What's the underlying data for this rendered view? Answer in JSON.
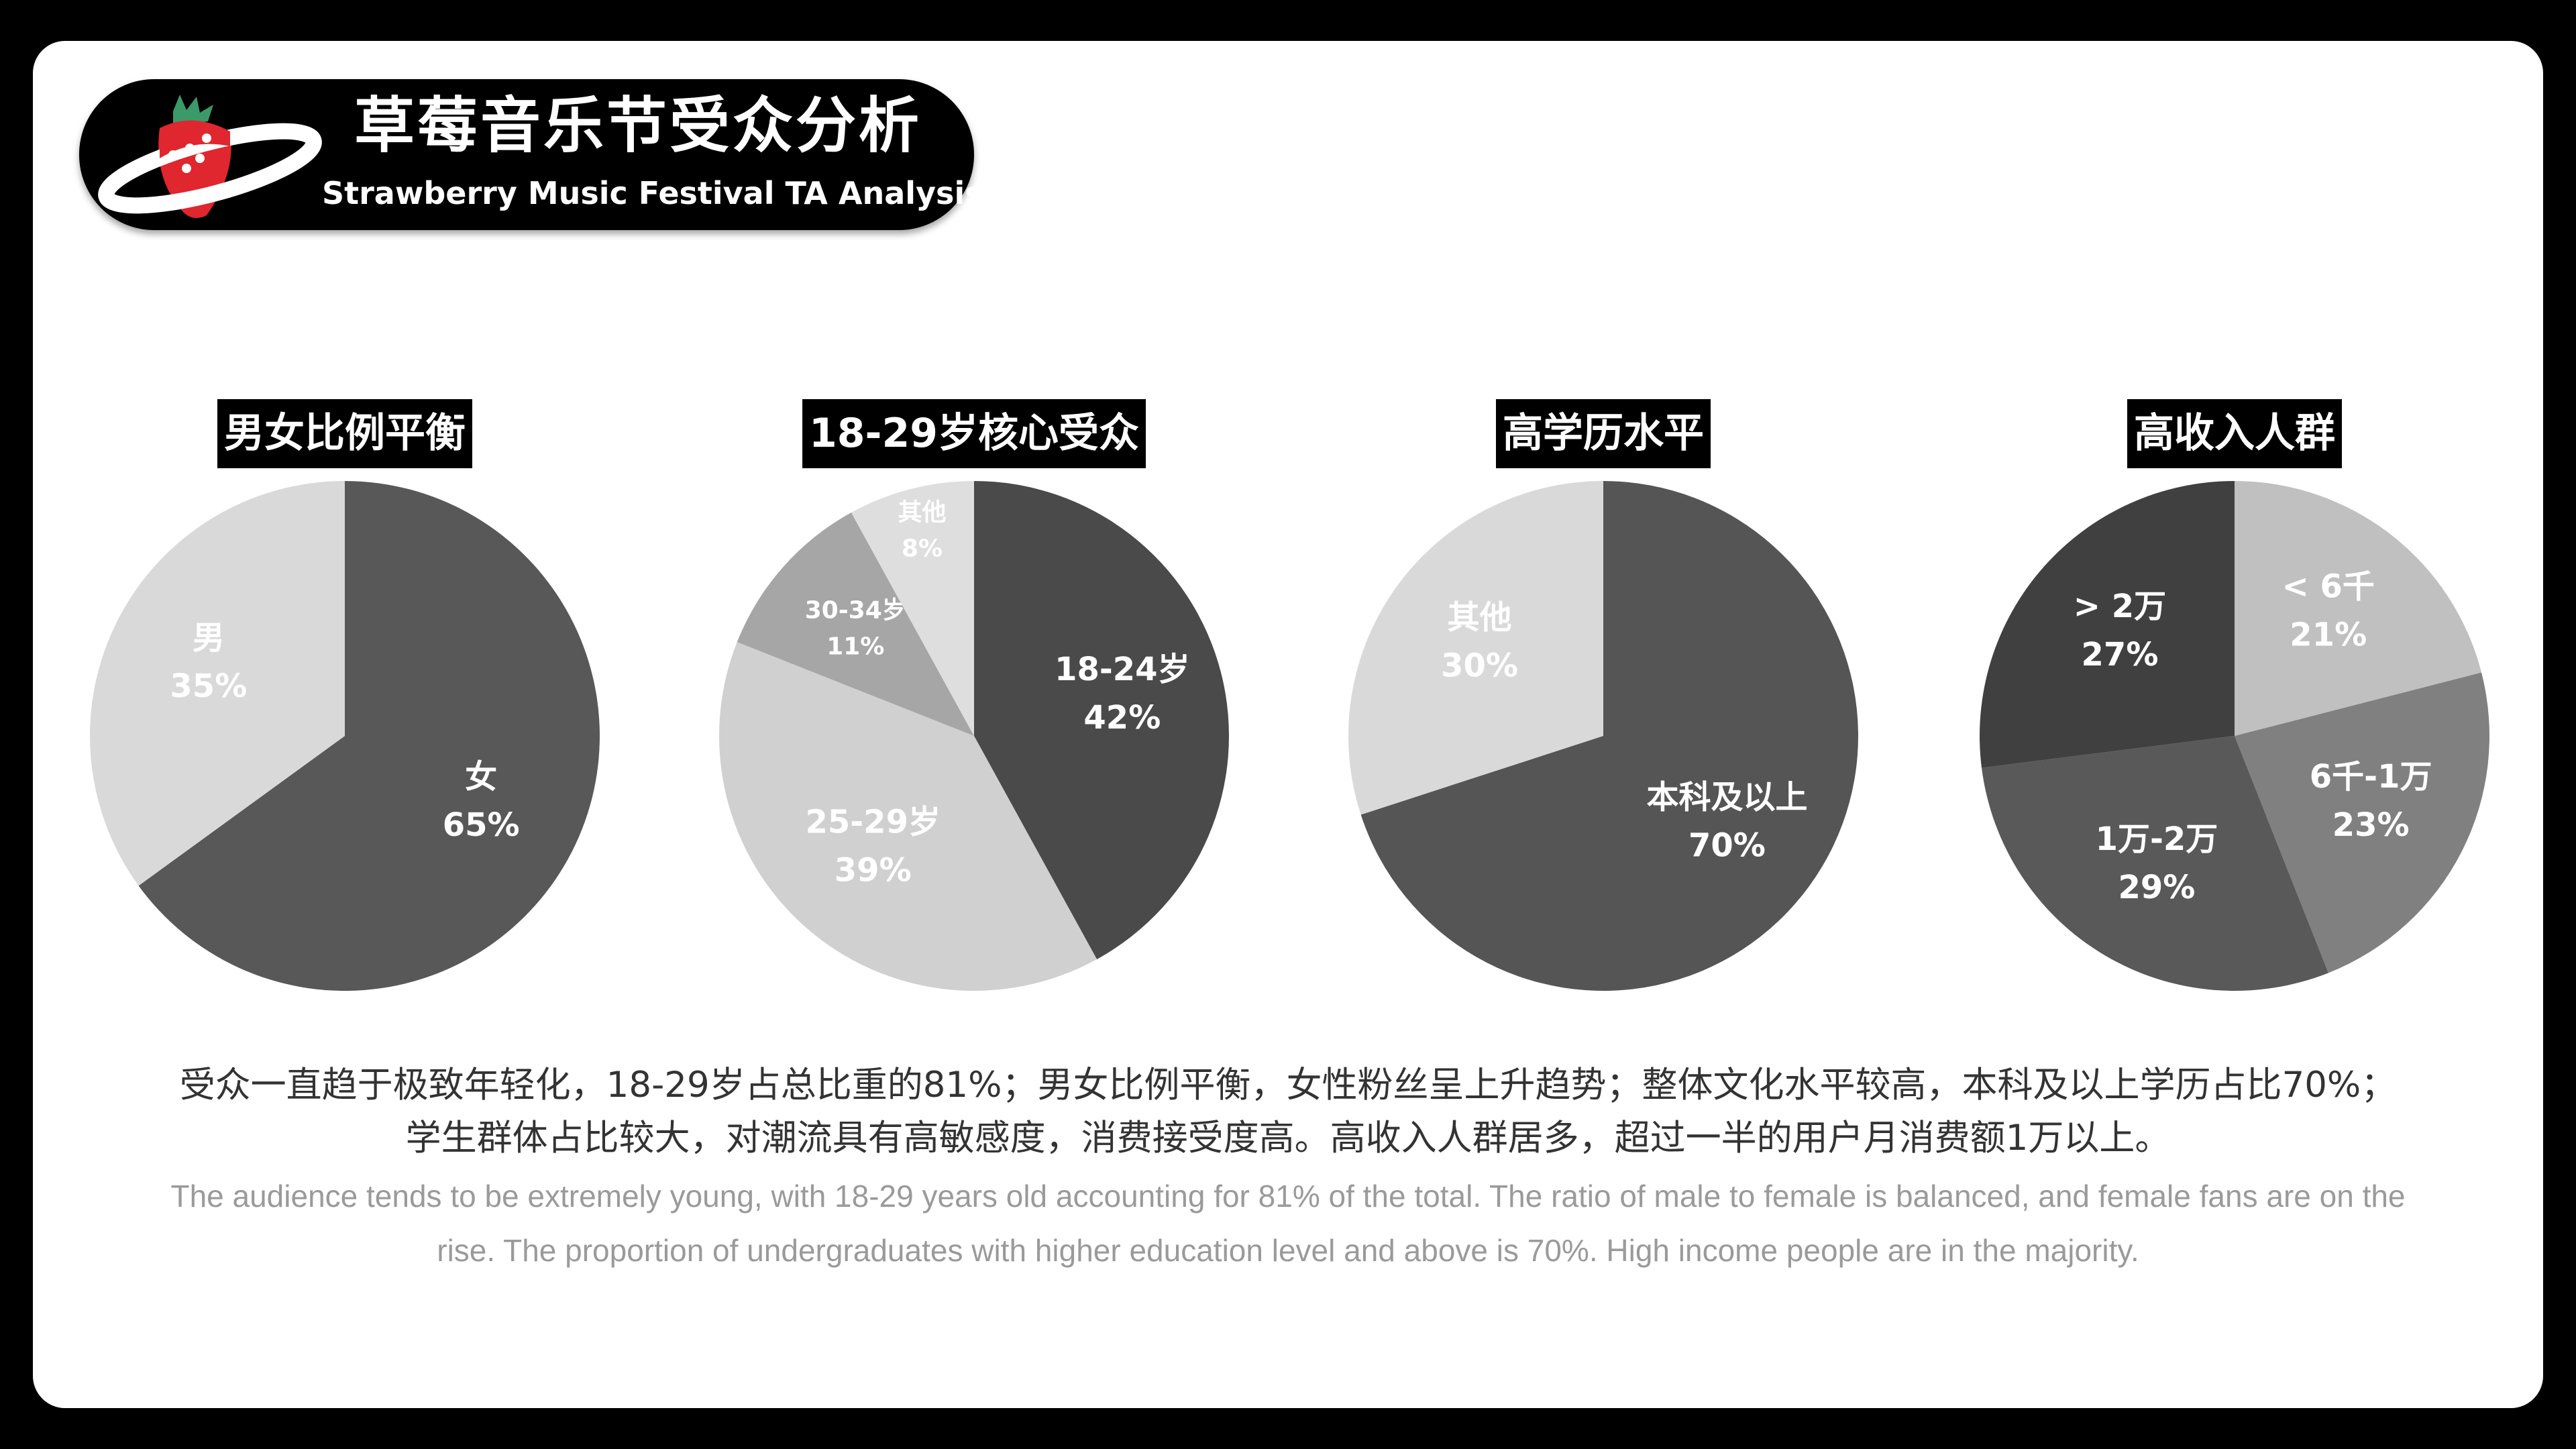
{
  "header": {
    "title_cn": "草莓音乐节受众分析",
    "title_en": "Strawberry Music Festival TA Analysis"
  },
  "chart_data": [
    {
      "type": "pie",
      "title": "男女比例平衡",
      "slices": [
        {
          "label": "女",
          "value": 65,
          "display": "65%",
          "color": "#585858"
        },
        {
          "label": "男",
          "value": 35,
          "display": "35%",
          "color": "#d9d9d9"
        }
      ]
    },
    {
      "type": "pie",
      "title": "18-29岁核心受众",
      "slices": [
        {
          "label": "18-24岁",
          "value": 42,
          "display": "42%",
          "color": "#4a4a4a"
        },
        {
          "label": "25-29岁",
          "value": 39,
          "display": "39%",
          "color": "#d0d0d0"
        },
        {
          "label": "30-34岁",
          "value": 11,
          "display": "11%",
          "color": "#a6a6a6"
        },
        {
          "label": "其他",
          "value": 8,
          "display": "8%",
          "color": "#dedede"
        }
      ]
    },
    {
      "type": "pie",
      "title": "高学历水平",
      "slices": [
        {
          "label": "本科及以上",
          "value": 70,
          "display": "70%",
          "color": "#555555"
        },
        {
          "label": "其他",
          "value": 30,
          "display": "30%",
          "color": "#d9d9d9"
        }
      ]
    },
    {
      "type": "pie",
      "title": "高收入人群",
      "slices": [
        {
          "label": "< 6千",
          "value": 21,
          "display": "21%",
          "color": "#c0c0c0"
        },
        {
          "label": "6千-1万",
          "value": 23,
          "display": "23%",
          "color": "#808080"
        },
        {
          "label": "1万-2万",
          "value": 29,
          "display": "29%",
          "color": "#595959"
        },
        {
          "label": "> 2万",
          "value": 27,
          "display": "27%",
          "color": "#404040"
        }
      ]
    }
  ],
  "description": {
    "cn_lines": [
      "受众一直趋于极致年轻化，18-29岁占总比重的81%；男女比例平衡，女性粉丝呈上升趋势；整体文化水平较高，本科及以上学历占比70%；",
      "学生群体占比较大，对潮流具有高敏感度，消费接受度高。高收入人群居多，超过一半的用户月消费额1万以上。"
    ],
    "en_lines": [
      "The audience  tends to be extremely young, with 18-29 years old accounting for 81% of the total. The ratio of male to female is balanced, and female fans are on the",
      "rise. The proportion of undergraduates with higher education level and above is 70%. High income people are in the majority."
    ]
  }
}
